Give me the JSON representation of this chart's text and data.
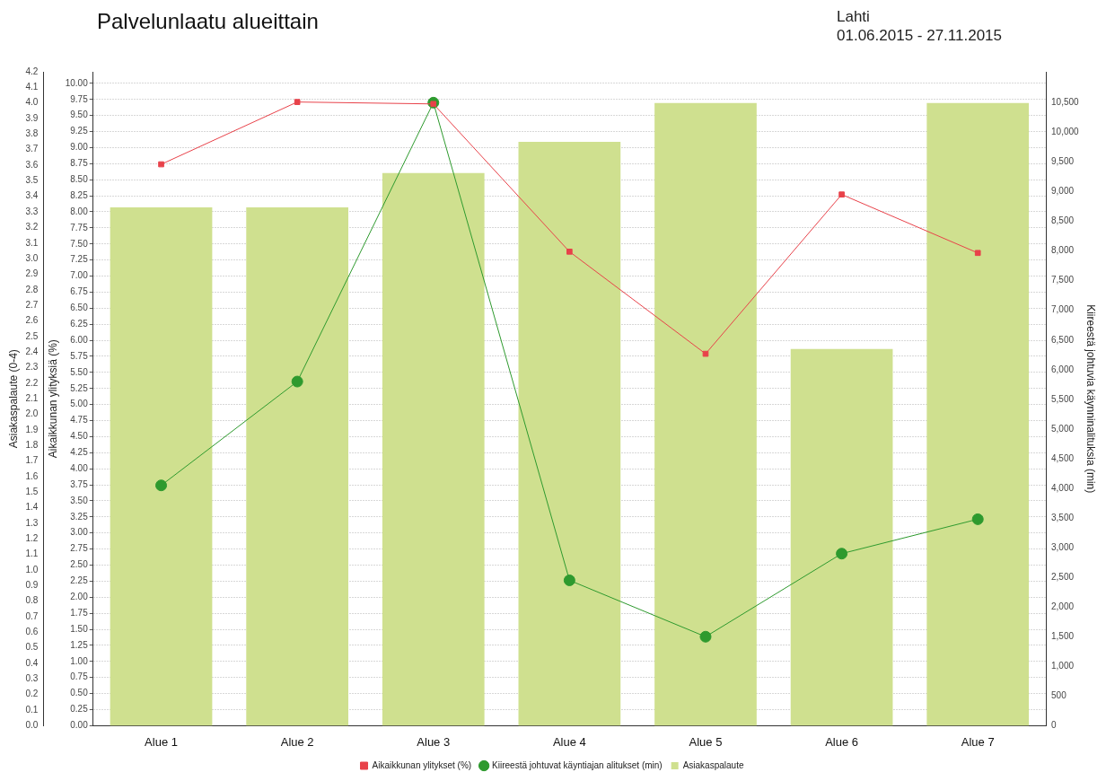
{
  "chart_data": {
    "type": "bar",
    "title": "Palvelunlaatu alueittain",
    "subtitle": "Lahti",
    "annotations": [
      "01.06.2015 - 27.11.2015"
    ],
    "ylabel": "Asiakaspalaute (0-4)",
    "y3label": "Aikaikkunan ylityksiä (%)",
    "y2label": "Kiireestä johtuvia käynninalituksia (min)",
    "categories": [
      "Alue 1",
      "Alue 2",
      "Alue 3",
      "Alue 4",
      "Alue 5",
      "Alue 6",
      "Alue 7"
    ],
    "series": [
      {
        "name": "Aikaikkunan ylitykset (%)",
        "type": "line",
        "axis": "y3",
        "marker": "square",
        "color": "#e8424a",
        "values": [
          8.74,
          9.71,
          9.68,
          7.38,
          5.79,
          8.27,
          7.36
        ]
      },
      {
        "name": "Kiireestä johtuvat käyntiajan alitukset (min)",
        "type": "line",
        "axis": "y2",
        "marker": "circle",
        "color": "#2e9a2e",
        "values": [
          4050,
          5800,
          10500,
          2450,
          1500,
          2900,
          3480
        ]
      },
      {
        "name": "Asiakaspalaute",
        "color": "#cfe08f",
        "values": [
          3.33,
          3.33,
          3.55,
          3.75,
          4.0,
          2.42,
          4.0
        ]
      }
    ],
    "ylim": [
      0,
      4.2
    ],
    "yticks": [
      {
        "value": 0,
        "label": "0.0"
      },
      {
        "value": 0.1,
        "label": "0.1"
      },
      {
        "value": 0.2,
        "label": "0.2"
      },
      {
        "value": 0.3,
        "label": "0.3"
      },
      {
        "value": 0.4,
        "label": "0.4"
      },
      {
        "value": 0.5,
        "label": "0.5"
      },
      {
        "value": 0.6,
        "label": "0.6"
      },
      {
        "value": 0.7,
        "label": "0.7"
      },
      {
        "value": 0.8,
        "label": "0.8"
      },
      {
        "value": 0.9,
        "label": "0.9"
      },
      {
        "value": 1,
        "label": "1.0"
      },
      {
        "value": 1.1,
        "label": "1.1"
      },
      {
        "value": 1.2,
        "label": "1.2"
      },
      {
        "value": 1.3,
        "label": "1.3"
      },
      {
        "value": 1.4,
        "label": "1.4"
      },
      {
        "value": 1.5,
        "label": "1.5"
      },
      {
        "value": 1.6,
        "label": "1.6"
      },
      {
        "value": 1.7,
        "label": "1.7"
      },
      {
        "value": 1.8,
        "label": "1.8"
      },
      {
        "value": 1.9,
        "label": "1.9"
      },
      {
        "value": 2,
        "label": "2.0"
      },
      {
        "value": 2.1,
        "label": "2.1"
      },
      {
        "value": 2.2,
        "label": "2.2"
      },
      {
        "value": 2.3,
        "label": "2.3"
      },
      {
        "value": 2.4,
        "label": "2.4"
      },
      {
        "value": 2.5,
        "label": "2.5"
      },
      {
        "value": 2.6,
        "label": "2.6"
      },
      {
        "value": 2.7,
        "label": "2.7"
      },
      {
        "value": 2.8,
        "label": "2.8"
      },
      {
        "value": 2.9,
        "label": "2.9"
      },
      {
        "value": 3,
        "label": "3.0"
      },
      {
        "value": 3.1,
        "label": "3.1"
      },
      {
        "value": 3.2,
        "label": "3.2"
      },
      {
        "value": 3.3,
        "label": "3.3"
      },
      {
        "value": 3.4,
        "label": "3.4"
      },
      {
        "value": 3.5,
        "label": "3.5"
      },
      {
        "value": 3.6,
        "label": "3.6"
      },
      {
        "value": 3.7,
        "label": "3.7"
      },
      {
        "value": 3.8,
        "label": "3.8"
      },
      {
        "value": 3.9,
        "label": "3.9"
      },
      {
        "value": 4,
        "label": "4.0"
      },
      {
        "value": 4.1,
        "label": "4.1"
      },
      {
        "value": 4.2,
        "label": "4.2"
      }
    ],
    "y3lim": [
      0,
      10.18
    ],
    "y3ticks": [
      {
        "value": 0,
        "label": "0.00"
      },
      {
        "value": 0.25,
        "label": "0.25"
      },
      {
        "value": 0.5,
        "label": "0.50"
      },
      {
        "value": 0.75,
        "label": "0.75"
      },
      {
        "value": 1,
        "label": "1.00"
      },
      {
        "value": 1.25,
        "label": "1.25"
      },
      {
        "value": 1.5,
        "label": "1.50"
      },
      {
        "value": 1.75,
        "label": "1.75"
      },
      {
        "value": 2,
        "label": "2.00"
      },
      {
        "value": 2.25,
        "label": "2.25"
      },
      {
        "value": 2.5,
        "label": "2.50"
      },
      {
        "value": 2.75,
        "label": "2.75"
      },
      {
        "value": 3,
        "label": "3.00"
      },
      {
        "value": 3.25,
        "label": "3.25"
      },
      {
        "value": 3.5,
        "label": "3.50"
      },
      {
        "value": 3.75,
        "label": "3.75"
      },
      {
        "value": 4,
        "label": "4.00"
      },
      {
        "value": 4.25,
        "label": "4.25"
      },
      {
        "value": 4.5,
        "label": "4.50"
      },
      {
        "value": 4.75,
        "label": "4.75"
      },
      {
        "value": 5,
        "label": "5.00"
      },
      {
        "value": 5.25,
        "label": "5.25"
      },
      {
        "value": 5.5,
        "label": "5.50"
      },
      {
        "value": 5.75,
        "label": "5.75"
      },
      {
        "value": 6,
        "label": "6.00"
      },
      {
        "value": 6.25,
        "label": "6.25"
      },
      {
        "value": 6.5,
        "label": "6.50"
      },
      {
        "value": 6.75,
        "label": "6.75"
      },
      {
        "value": 7,
        "label": "7.00"
      },
      {
        "value": 7.25,
        "label": "7.25"
      },
      {
        "value": 7.5,
        "label": "7.50"
      },
      {
        "value": 7.75,
        "label": "7.75"
      },
      {
        "value": 8,
        "label": "8.00"
      },
      {
        "value": 8.25,
        "label": "8.25"
      },
      {
        "value": 8.5,
        "label": "8.50"
      },
      {
        "value": 8.75,
        "label": "8.75"
      },
      {
        "value": 9,
        "label": "9.00"
      },
      {
        "value": 9.25,
        "label": "9.25"
      },
      {
        "value": 9.5,
        "label": "9.50"
      },
      {
        "value": 9.75,
        "label": "9.75"
      },
      {
        "value": 10,
        "label": "10.00"
      }
    ],
    "y2lim": [
      0,
      11020
    ],
    "y2ticks": [
      0,
      500,
      {
        "value": 1000,
        "label": "1,000"
      },
      {
        "value": 1500,
        "label": "1,500"
      },
      {
        "value": 2000,
        "label": "2,000"
      },
      {
        "value": 2500,
        "label": "2,500"
      },
      {
        "value": 3000,
        "label": "3,000"
      },
      {
        "value": 3500,
        "label": "3,500"
      },
      {
        "value": 4000,
        "label": "4,000"
      },
      {
        "value": 4500,
        "label": "4,500"
      },
      {
        "value": 5000,
        "label": "5,000"
      },
      {
        "value": 5500,
        "label": "5,500"
      },
      {
        "value": 6000,
        "label": "6,000"
      },
      {
        "value": 6500,
        "label": "6,500"
      },
      {
        "value": 7000,
        "label": "7,000"
      },
      {
        "value": 7500,
        "label": "7,500"
      },
      {
        "value": 8000,
        "label": "8,000"
      },
      {
        "value": 8500,
        "label": "8,500"
      },
      {
        "value": 9000,
        "label": "9,000"
      },
      {
        "value": 9500,
        "label": "9,500"
      },
      {
        "value": 10000,
        "label": "10,000"
      },
      {
        "value": 10500,
        "label": "10,500"
      }
    ],
    "grid": "y3",
    "legend": "bottom"
  }
}
